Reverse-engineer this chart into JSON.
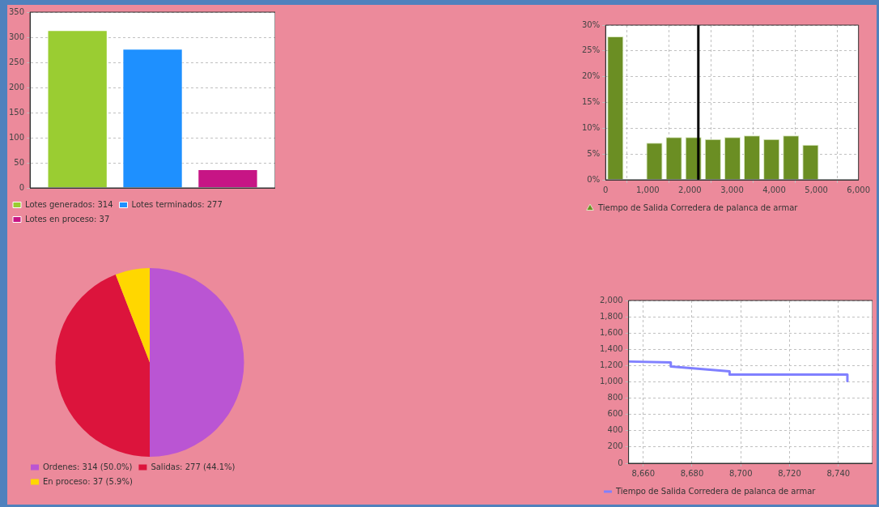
{
  "chart_data": [
    {
      "type": "bar",
      "categories": [
        null
      ],
      "series": [
        {
          "name": "Lotes generados: 314",
          "color": "#9acd32",
          "values": [
            314
          ]
        },
        {
          "name": "Lotes terminados: 277",
          "color": "#1e90ff",
          "values": [
            277
          ]
        },
        {
          "name": "Lotes en proceso: 37",
          "color": "#c71585",
          "values": [
            37
          ]
        }
      ],
      "ylim": [
        0,
        350
      ],
      "yticks": [
        0,
        50,
        100,
        150,
        200,
        250,
        300,
        350
      ],
      "grid": "y",
      "legend": "bottom left"
    },
    {
      "type": "histogram",
      "bins": [
        0,
        463,
        926,
        1389,
        1852,
        2315,
        2778,
        3241,
        3704,
        4167,
        4630,
        5093
      ],
      "series": [
        {
          "name": "Tiempo de Salida Corredera de palanca de armar",
          "color": "#6b8e23",
          "values": [
            27.8,
            0,
            7.2,
            8.3,
            8.3,
            7.9,
            8.3,
            8.6,
            7.9,
            8.6,
            6.8
          ]
        }
      ],
      "xlim": [
        0,
        6000
      ],
      "xticks": [
        0,
        {
          "value": 1000,
          "label": "1,000"
        },
        {
          "value": 2000,
          "label": "2,000"
        },
        {
          "value": 3000,
          "label": "3,000"
        },
        {
          "value": 4000,
          "label": "4,000"
        },
        {
          "value": 5000,
          "label": "5,000"
        },
        {
          "value": 6000,
          "label": "6,000"
        }
      ],
      "ylim": [
        0,
        30
      ],
      "yticks": [
        {
          "value": 0,
          "label": "0%"
        },
        {
          "value": 5,
          "label": "5%"
        },
        {
          "value": 10,
          "label": "10%"
        },
        {
          "value": 15,
          "label": "15%"
        },
        {
          "value": 20,
          "label": "20%"
        },
        {
          "value": 25,
          "label": "25%"
        },
        {
          "value": 30,
          "label": "30%"
        }
      ],
      "ref_lines": [
        {
          "axis": "x",
          "value": 2200,
          "color": "#000000"
        }
      ],
      "grid": true,
      "legend": "bottom"
    },
    {
      "type": "pie",
      "categories": [
        "Ordenes: 314 (50.0%)",
        "Salidas: 277 (44.1%)",
        "En proceso: 37 (5.9%)"
      ],
      "values": [
        314,
        277,
        37
      ],
      "colors": [
        "#ba55d3",
        "#dc143c",
        "#ffd700"
      ],
      "legend": "bottom left"
    },
    {
      "type": "line",
      "x": [
        8654,
        8671.3,
        8671.3,
        8695.4,
        8695.4,
        8743.7,
        8743.7
      ],
      "series": [
        {
          "name": "Tiempo de Salida Corredera de palanca de armar",
          "color": "#8080ff",
          "values": [
            1250,
            1240,
            1190,
            1130,
            1090,
            1090,
            1010
          ]
        }
      ],
      "xlim": [
        8654,
        8754
      ],
      "xticks": [
        {
          "value": 8660,
          "label": "8,660"
        },
        {
          "value": 8680,
          "label": "8,680"
        },
        {
          "value": 8700,
          "label": "8,700"
        },
        {
          "value": 8720,
          "label": "8,720"
        },
        {
          "value": 8740,
          "label": "8,740"
        }
      ],
      "ylim": [
        0,
        2000
      ],
      "yticks": [
        0,
        200,
        400,
        600,
        800,
        {
          "value": 1000,
          "label": "1,000"
        },
        {
          "value": 1200,
          "label": "1,200"
        },
        {
          "value": 1400,
          "label": "1,400"
        },
        {
          "value": 1600,
          "label": "1,600"
        },
        {
          "value": 1800,
          "label": "1,800"
        },
        {
          "value": 2000,
          "label": "2,000"
        }
      ],
      "grid": true,
      "marker": "none",
      "line_style": "solid",
      "legend": "bottom"
    }
  ]
}
